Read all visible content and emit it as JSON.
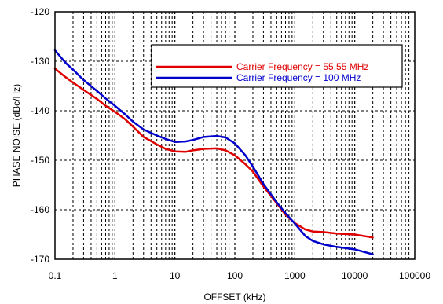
{
  "chart_data": {
    "type": "line",
    "title": "",
    "xlabel": "OFFSET (kHz)",
    "ylabel": "PHASE NOISE (dBc/Hz)",
    "xscale": "log",
    "xlim": [
      0.1,
      100000
    ],
    "ylim": [
      -170,
      -120
    ],
    "x_ticks": [
      0.1,
      1,
      10,
      100,
      1000,
      10000,
      100000
    ],
    "x_tick_labels": [
      "0.1",
      "1",
      "10",
      "100",
      "1000",
      "10000",
      "100000"
    ],
    "y_ticks": [
      -170,
      -160,
      -150,
      -140,
      -130,
      -120
    ],
    "y_tick_labels": [
      "-170",
      "-160",
      "-150",
      "-140",
      "-130",
      "-120"
    ],
    "grid": true,
    "legend_position": "top-right",
    "series": [
      {
        "name": "Carrier Frequency  = 55.55 MHz",
        "color": "#e00000",
        "x": [
          0.1,
          0.15,
          0.2,
          0.3,
          0.5,
          0.7,
          1,
          1.5,
          2,
          3,
          5,
          7,
          10,
          15,
          20,
          30,
          50,
          70,
          100,
          150,
          200,
          300,
          500,
          700,
          1000,
          1500,
          2000,
          3000,
          5000,
          10000,
          20000
        ],
        "y": [
          -131.5,
          -133.2,
          -134.3,
          -135.8,
          -137.6,
          -139.0,
          -140.2,
          -141.8,
          -143.2,
          -145.3,
          -146.8,
          -147.7,
          -148.2,
          -148.3,
          -148.0,
          -147.7,
          -147.6,
          -148.0,
          -149.0,
          -150.8,
          -152.3,
          -155.3,
          -158.7,
          -161.0,
          -162.7,
          -164.0,
          -164.4,
          -164.5,
          -164.8,
          -165.0,
          -165.6
        ]
      },
      {
        "name": "Carrier Frequency = 100 MHz",
        "color": "#0000cc",
        "x": [
          0.1,
          0.15,
          0.2,
          0.3,
          0.5,
          0.7,
          1,
          1.5,
          2,
          3,
          5,
          7,
          10,
          15,
          20,
          30,
          50,
          70,
          100,
          150,
          200,
          300,
          500,
          700,
          1000,
          1500,
          2000,
          3000,
          5000,
          10000,
          20000
        ],
        "y": [
          -127.8,
          -130.3,
          -131.7,
          -133.8,
          -136.0,
          -137.5,
          -139.0,
          -140.8,
          -142.2,
          -143.8,
          -145.0,
          -145.7,
          -146.3,
          -146.2,
          -145.9,
          -145.3,
          -145.1,
          -145.4,
          -146.6,
          -149.0,
          -151.3,
          -154.8,
          -158.5,
          -160.7,
          -162.8,
          -165.3,
          -166.3,
          -167.0,
          -167.5,
          -168.0,
          -169.0
        ]
      }
    ]
  }
}
